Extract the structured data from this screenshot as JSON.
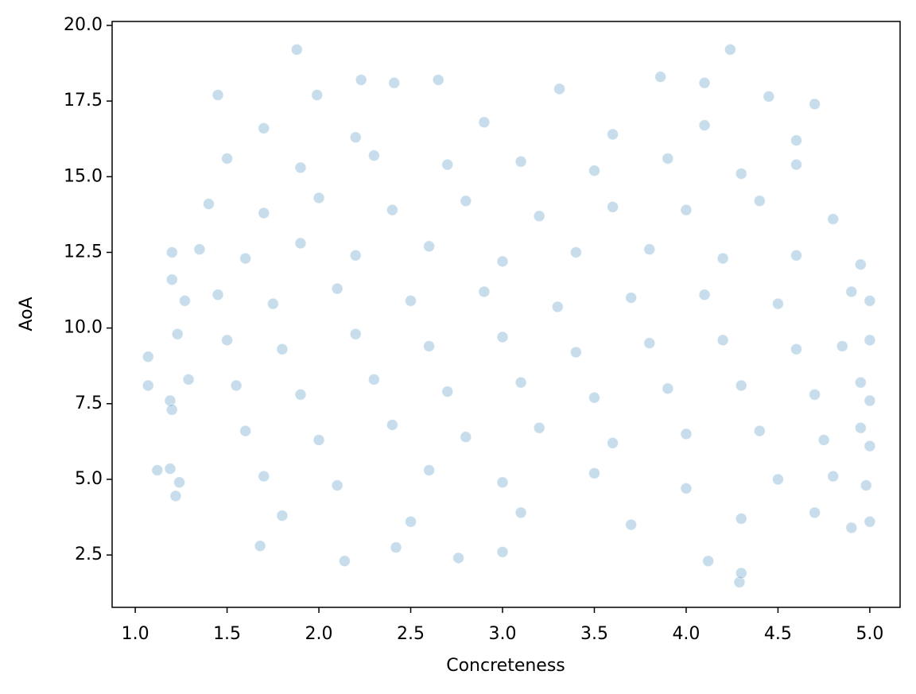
{
  "chart_data": {
    "type": "scatter",
    "xlabel": "Concreteness",
    "ylabel": "AoA",
    "color": "#1f77b4",
    "xlim": [
      0.874,
      5.165
    ],
    "ylim": [
      0.77,
      20.13
    ],
    "xticks": [
      {
        "value": 1,
        "label": "1.0"
      },
      1.5,
      {
        "value": 2,
        "label": "2.0"
      },
      2.5,
      {
        "value": 3,
        "label": "3.0"
      },
      3.5,
      {
        "value": 4,
        "label": "4.0"
      },
      4.5,
      {
        "value": 5,
        "label": "5.0"
      }
    ],
    "yticks": [
      2.5,
      {
        "value": 5,
        "label": "5.0"
      },
      7.5,
      {
        "value": 10,
        "label": "10.0"
      },
      12.5,
      {
        "value": 15,
        "label": "15.0"
      },
      17.5,
      {
        "value": 20,
        "label": "20.0"
      }
    ],
    "grid": false,
    "x": [
      1.07,
      1.07,
      1.12,
      1.19,
      1.2,
      1.19,
      1.22,
      1.24,
      1.88,
      4.24,
      4.29,
      4.3,
      2.14,
      4.12,
      3.0,
      2.76,
      1.68,
      2.42,
      3.86,
      2.23,
      2.65,
      4.1,
      1.45,
      4.45,
      3.31,
      2.41,
      1.99,
      4.7,
      1.2,
      1.2,
      1.23,
      1.27,
      1.29,
      1.7,
      2.2,
      2.9,
      3.6,
      4.1,
      4.6,
      1.5,
      1.9,
      2.3,
      2.7,
      3.1,
      3.5,
      3.9,
      4.3,
      4.6,
      1.4,
      1.7,
      2.0,
      2.4,
      2.8,
      3.2,
      3.6,
      4.0,
      4.4,
      4.8,
      1.35,
      1.6,
      1.9,
      2.2,
      2.6,
      3.0,
      3.4,
      3.8,
      4.2,
      4.6,
      4.95,
      1.45,
      1.75,
      2.1,
      2.5,
      2.9,
      3.3,
      3.7,
      4.1,
      4.5,
      4.9,
      5.0,
      1.5,
      1.8,
      2.2,
      2.6,
      3.0,
      3.4,
      3.8,
      4.2,
      4.6,
      4.85,
      5.0,
      1.55,
      1.9,
      2.3,
      2.7,
      3.1,
      3.5,
      3.9,
      4.3,
      4.7,
      4.95,
      5.0,
      1.6,
      2.0,
      2.4,
      2.8,
      3.2,
      3.6,
      4.0,
      4.4,
      4.75,
      4.95,
      5.0,
      1.7,
      2.1,
      2.6,
      3.0,
      3.5,
      4.0,
      4.5,
      4.8,
      4.98,
      1.8,
      2.5,
      3.1,
      3.7,
      4.3,
      4.7,
      4.9,
      5.0
    ],
    "values": [
      9.05,
      8.1,
      5.3,
      7.6,
      7.3,
      5.35,
      4.45,
      4.9,
      19.2,
      19.2,
      1.6,
      1.9,
      2.3,
      2.3,
      2.6,
      2.4,
      2.8,
      2.75,
      18.3,
      18.2,
      18.2,
      18.1,
      17.7,
      17.65,
      17.9,
      18.1,
      17.7,
      17.4,
      11.6,
      12.5,
      9.8,
      10.9,
      8.3,
      16.6,
      16.3,
      16.8,
      16.4,
      16.7,
      16.2,
      15.6,
      15.3,
      15.7,
      15.4,
      15.5,
      15.2,
      15.6,
      15.1,
      15.4,
      14.1,
      13.8,
      14.3,
      13.9,
      14.2,
      13.7,
      14.0,
      13.9,
      14.2,
      13.6,
      12.6,
      12.3,
      12.8,
      12.4,
      12.7,
      12.2,
      12.5,
      12.6,
      12.3,
      12.4,
      12.1,
      11.1,
      10.8,
      11.3,
      10.9,
      11.2,
      10.7,
      11.0,
      11.1,
      10.8,
      11.2,
      10.9,
      9.6,
      9.3,
      9.8,
      9.4,
      9.7,
      9.2,
      9.5,
      9.6,
      9.3,
      9.4,
      9.6,
      8.1,
      7.8,
      8.3,
      7.9,
      8.2,
      7.7,
      8.0,
      8.1,
      7.8,
      8.2,
      7.6,
      6.6,
      6.3,
      6.8,
      6.4,
      6.7,
      6.2,
      6.5,
      6.6,
      6.3,
      6.7,
      6.1,
      5.1,
      4.8,
      5.3,
      4.9,
      5.2,
      4.7,
      5.0,
      5.1,
      4.8,
      3.8,
      3.6,
      3.9,
      3.5,
      3.7,
      3.9,
      3.4,
      3.6
    ]
  }
}
